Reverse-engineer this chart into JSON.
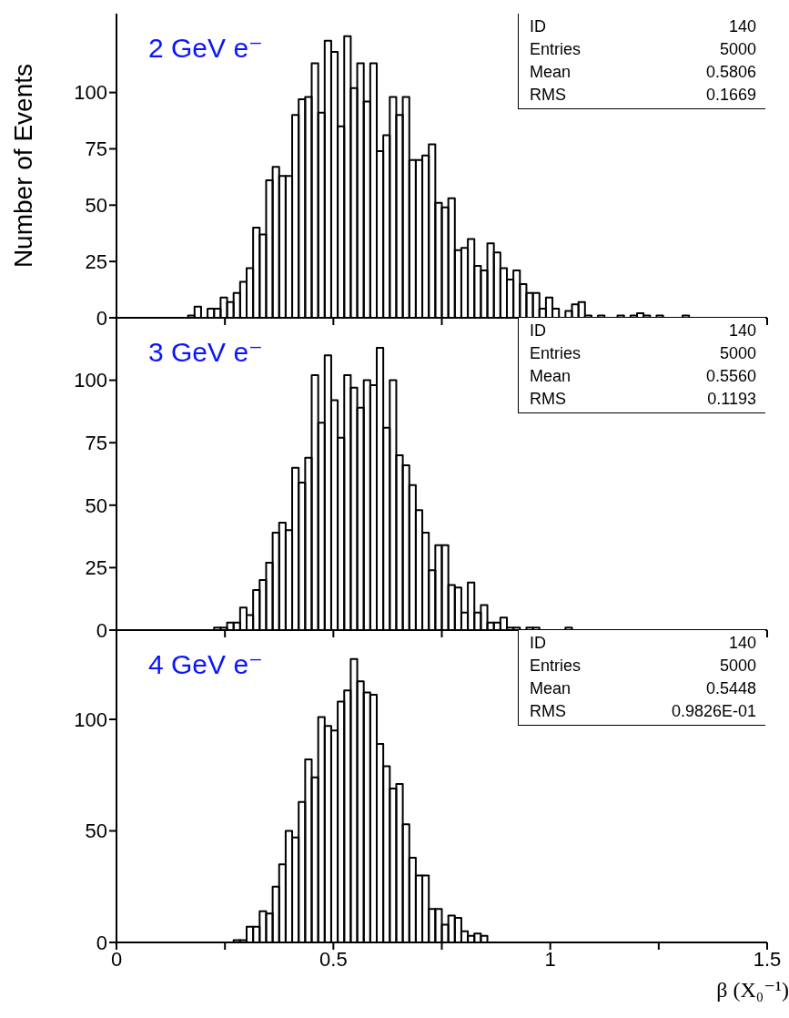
{
  "chart_data": [
    {
      "type": "histogram",
      "title": "2 GeV e⁻",
      "ylabel": "Number of Events",
      "color": "#000000",
      "bins": [
        0.165,
        0.18,
        0.195,
        0.21,
        0.225,
        0.24,
        0.255,
        0.27,
        0.285,
        0.3,
        0.315,
        0.33,
        0.345,
        0.36,
        0.375,
        0.39,
        0.405,
        0.42,
        0.435,
        0.45,
        0.465,
        0.48,
        0.495,
        0.51,
        0.525,
        0.54,
        0.555,
        0.57,
        0.585,
        0.6,
        0.615,
        0.63,
        0.645,
        0.66,
        0.675,
        0.69,
        0.705,
        0.72,
        0.735,
        0.75,
        0.765,
        0.78,
        0.795,
        0.81,
        0.825,
        0.84,
        0.855,
        0.87,
        0.885,
        0.9,
        0.915,
        0.93,
        0.945,
        0.96,
        0.975,
        0.99,
        1.005,
        1.02,
        1.035,
        1.05,
        1.065,
        1.08,
        1.095,
        1.11,
        1.125,
        1.14,
        1.155,
        1.17,
        1.185,
        1.2,
        1.215,
        1.23,
        1.245,
        1.26,
        1.275,
        1.29,
        1.305,
        1.32
      ],
      "values": [
        1,
        5,
        0,
        4,
        4,
        9,
        7,
        11,
        16,
        22,
        40,
        37,
        61,
        67,
        63,
        63,
        90,
        97,
        98,
        113,
        91,
        123,
        118,
        85,
        125,
        102,
        113,
        96,
        113,
        74,
        81,
        98,
        90,
        98,
        70,
        70,
        72,
        77,
        51,
        49,
        53,
        30,
        31,
        35,
        23,
        21,
        33,
        29,
        22,
        17,
        21,
        15,
        11,
        11,
        4,
        9,
        4,
        0,
        3,
        6,
        7,
        1,
        0,
        1,
        0,
        0,
        1,
        0,
        1,
        2,
        1,
        0,
        1,
        0,
        0,
        0,
        1
      ],
      "xlim": [
        0,
        1.5
      ],
      "xticks": [
        0,
        {
          "value": 0.25,
          "label": null
        },
        0.5,
        {
          "value": 0.75,
          "label": null
        },
        1,
        {
          "value": 1.25,
          "label": null
        },
        1.5
      ],
      "ylim": [
        0,
        135
      ],
      "yticks": [
        0,
        25,
        50,
        75,
        100
      ],
      "tick_labels": "y",
      "annotations": [
        "ID",
        "140",
        "Entries",
        "5000",
        "Mean",
        "0.5806",
        "RMS",
        "0.1669"
      ]
    },
    {
      "type": "histogram",
      "title": "3 GeV e⁻",
      "color": "#000000",
      "bins": [
        0.225,
        0.24,
        0.255,
        0.27,
        0.285,
        0.3,
        0.315,
        0.33,
        0.345,
        0.36,
        0.375,
        0.39,
        0.405,
        0.42,
        0.435,
        0.45,
        0.465,
        0.48,
        0.495,
        0.51,
        0.525,
        0.54,
        0.555,
        0.57,
        0.585,
        0.6,
        0.615,
        0.63,
        0.645,
        0.66,
        0.675,
        0.69,
        0.705,
        0.72,
        0.735,
        0.75,
        0.765,
        0.78,
        0.795,
        0.81,
        0.825,
        0.84,
        0.855,
        0.87,
        0.885,
        0.9,
        0.915,
        0.93,
        0.945,
        0.96,
        0.975,
        0.99,
        1.005,
        1.02,
        1.035,
        1.05
      ],
      "values": [
        1,
        1,
        3,
        3,
        9,
        6,
        16,
        20,
        27,
        39,
        43,
        40,
        65,
        59,
        69,
        102,
        83,
        110,
        92,
        77,
        102,
        97,
        89,
        100,
        98,
        113,
        81,
        100,
        70,
        66,
        58,
        48,
        39,
        24,
        34,
        34,
        18,
        17,
        7,
        19,
        7,
        10,
        3,
        3,
        5,
        1,
        1,
        0,
        1,
        1,
        0,
        0,
        0,
        0,
        1
      ],
      "xlim": [
        0,
        1.5
      ],
      "xticks": [
        0,
        {
          "value": 0.25,
          "label": null
        },
        0.5,
        {
          "value": 0.75,
          "label": null
        },
        1,
        {
          "value": 1.25,
          "label": null
        },
        1.5
      ],
      "ylim": [
        0,
        125
      ],
      "yticks": [
        0,
        25,
        50,
        75,
        100
      ],
      "tick_labels": "y",
      "annotations": [
        "ID",
        "140",
        "Entries",
        "5000",
        "Mean",
        "0.5560",
        "RMS",
        "0.1193"
      ]
    },
    {
      "type": "histogram",
      "title": "4 GeV e⁻",
      "xlabel": "β (X₀⁻¹)",
      "color": "#000000",
      "bins": [
        0.27,
        0.285,
        0.3,
        0.315,
        0.33,
        0.345,
        0.36,
        0.375,
        0.39,
        0.405,
        0.42,
        0.435,
        0.45,
        0.465,
        0.48,
        0.495,
        0.51,
        0.525,
        0.54,
        0.555,
        0.57,
        0.585,
        0.6,
        0.615,
        0.63,
        0.645,
        0.66,
        0.675,
        0.69,
        0.705,
        0.72,
        0.735,
        0.75,
        0.765,
        0.78,
        0.795,
        0.81,
        0.825,
        0.84,
        0.855
      ],
      "values": [
        1,
        1,
        7,
        7,
        14,
        13,
        25,
        35,
        50,
        47,
        63,
        82,
        74,
        101,
        97,
        95,
        108,
        113,
        127,
        117,
        112,
        111,
        89,
        79,
        69,
        71,
        53,
        38,
        30,
        30,
        15,
        15,
        8,
        12,
        11,
        5,
        3,
        4,
        3
      ],
      "xlim": [
        0,
        1.5
      ],
      "xticks": [
        0,
        {
          "value": 0.25,
          "label": null
        },
        0.5,
        {
          "value": 0.75,
          "label": null
        },
        1,
        {
          "value": 1.25,
          "label": null
        },
        1.5
      ],
      "ylim": [
        0,
        140
      ],
      "yticks": [
        0,
        50,
        100
      ],
      "annotations": [
        "ID",
        "140",
        "Entries",
        "5000",
        "Mean",
        "0.5448",
        "RMS",
        "0.9826E-01"
      ]
    }
  ]
}
